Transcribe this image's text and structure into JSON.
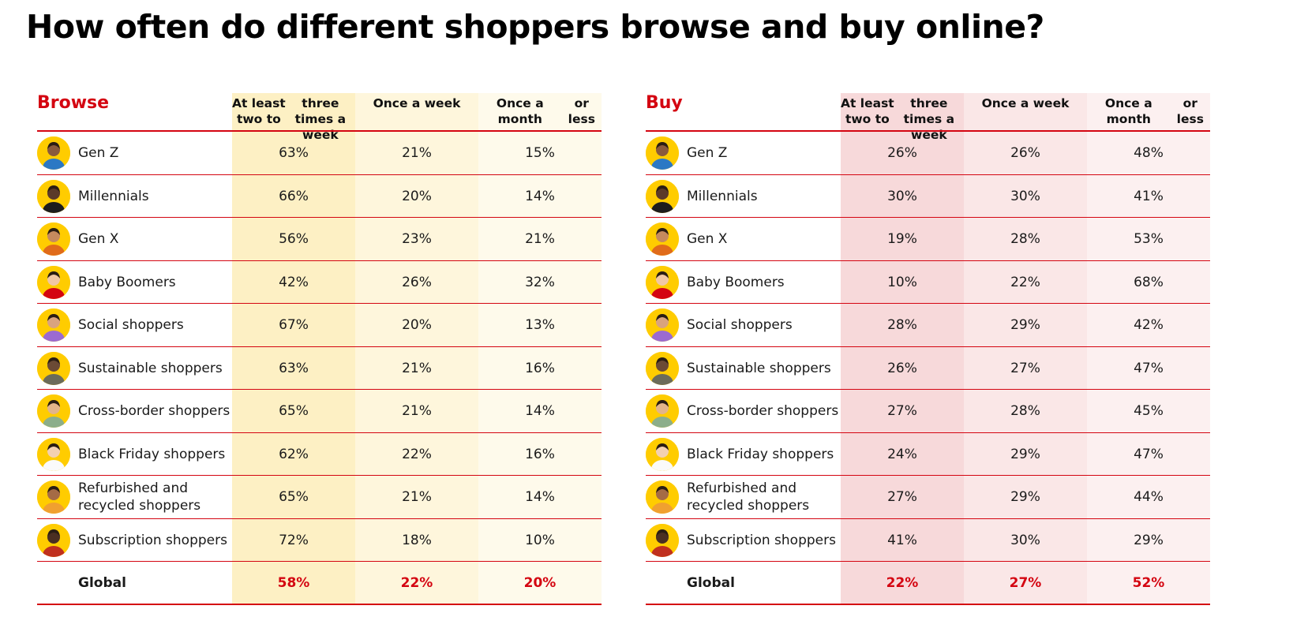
{
  "title": "How often do different shoppers browse and buy online?",
  "colors": {
    "accent": "#d40511",
    "browse_col1": "#fdf0c4",
    "browse_col2": "#fef6dc",
    "browse_col3": "#fefaeb",
    "buy_col1": "#f7d9da",
    "buy_col2": "#fae7e7",
    "buy_col3": "#fcf0f0",
    "avatar_bg": "#ffcc00"
  },
  "columns": [
    "At least two to three times a week",
    "Once a week",
    "Once a month or less"
  ],
  "column_lines": [
    [
      "At least two to",
      "three times a week"
    ],
    [
      "Once a week"
    ],
    [
      "Once a month",
      "or less"
    ]
  ],
  "browse": {
    "label": "Browse",
    "rows": [
      {
        "segment": "Gen Z",
        "icon": "gen-z-avatar-icon",
        "values": [
          "63%",
          "21%",
          "15%"
        ]
      },
      {
        "segment": "Millennials",
        "icon": "millennials-avatar-icon",
        "values": [
          "66%",
          "20%",
          "14%"
        ]
      },
      {
        "segment": "Gen X",
        "icon": "gen-x-avatar-icon",
        "values": [
          "56%",
          "23%",
          "21%"
        ]
      },
      {
        "segment": "Baby Boomers",
        "icon": "baby-boomers-avatar-icon",
        "values": [
          "42%",
          "26%",
          "32%"
        ]
      },
      {
        "segment": "Social shoppers",
        "icon": "social-shoppers-avatar-icon",
        "values": [
          "67%",
          "20%",
          "13%"
        ]
      },
      {
        "segment": "Sustainable shoppers",
        "icon": "sustainable-shoppers-avatar-icon",
        "values": [
          "63%",
          "21%",
          "16%"
        ]
      },
      {
        "segment": "Cross-border shoppers",
        "icon": "cross-border-shoppers-avatar-icon",
        "values": [
          "65%",
          "21%",
          "14%"
        ]
      },
      {
        "segment": "Black Friday shoppers",
        "icon": "black-friday-shoppers-avatar-icon",
        "values": [
          "62%",
          "22%",
          "16%"
        ]
      },
      {
        "segment": "Refurbished and recycled shoppers",
        "icon": "refurbished-shoppers-avatar-icon",
        "values": [
          "65%",
          "21%",
          "14%"
        ]
      },
      {
        "segment": "Subscription shoppers",
        "icon": "subscription-shoppers-avatar-icon",
        "values": [
          "72%",
          "18%",
          "10%"
        ]
      }
    ],
    "global": {
      "segment": "Global",
      "values": [
        "58%",
        "22%",
        "20%"
      ]
    }
  },
  "buy": {
    "label": "Buy",
    "rows": [
      {
        "segment": "Gen Z",
        "icon": "gen-z-avatar-icon",
        "values": [
          "26%",
          "26%",
          "48%"
        ]
      },
      {
        "segment": "Millennials",
        "icon": "millennials-avatar-icon",
        "values": [
          "30%",
          "30%",
          "41%"
        ]
      },
      {
        "segment": "Gen X",
        "icon": "gen-x-avatar-icon",
        "values": [
          "19%",
          "28%",
          "53%"
        ]
      },
      {
        "segment": "Baby Boomers",
        "icon": "baby-boomers-avatar-icon",
        "values": [
          "10%",
          "22%",
          "68%"
        ]
      },
      {
        "segment": "Social shoppers",
        "icon": "social-shoppers-avatar-icon",
        "values": [
          "28%",
          "29%",
          "42%"
        ]
      },
      {
        "segment": "Sustainable shoppers",
        "icon": "sustainable-shoppers-avatar-icon",
        "values": [
          "26%",
          "27%",
          "47%"
        ]
      },
      {
        "segment": "Cross-border shoppers",
        "icon": "cross-border-shoppers-avatar-icon",
        "values": [
          "27%",
          "28%",
          "45%"
        ]
      },
      {
        "segment": "Black Friday shoppers",
        "icon": "black-friday-shoppers-avatar-icon",
        "values": [
          "24%",
          "29%",
          "47%"
        ]
      },
      {
        "segment": "Refurbished and recycled shoppers",
        "icon": "refurbished-shoppers-avatar-icon",
        "values": [
          "27%",
          "29%",
          "44%"
        ]
      },
      {
        "segment": "Subscription shoppers",
        "icon": "subscription-shoppers-avatar-icon",
        "values": [
          "41%",
          "30%",
          "29%"
        ]
      }
    ],
    "global": {
      "segment": "Global",
      "values": [
        "22%",
        "27%",
        "52%"
      ]
    }
  }
}
